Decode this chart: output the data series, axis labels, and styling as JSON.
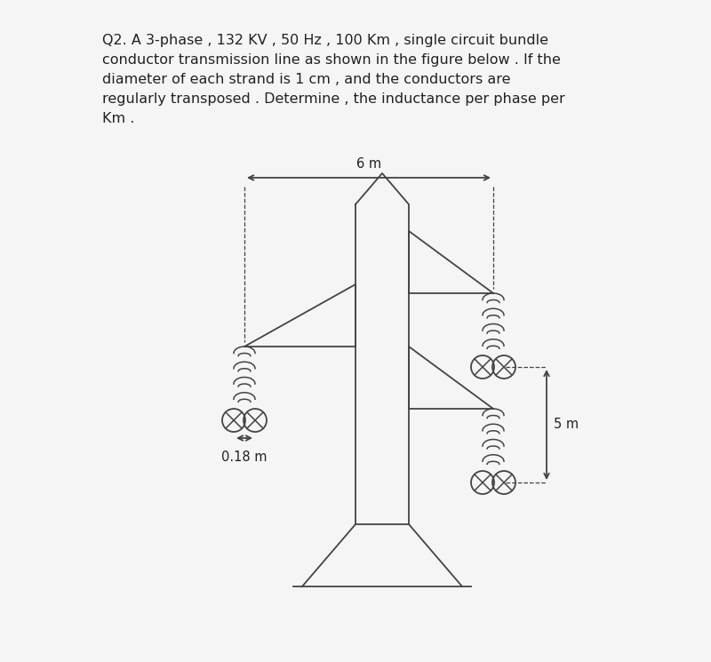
{
  "title_line1": "Q2. A 3-phase , 132 KV , 50 Hz , 100 Km , single circuit bundle",
  "title_line2": "conductor transmission line as shown in the figure below . If the",
  "title_line3": "diameter of each strand is 1 cm , and the conductors are",
  "title_line4": "regularly transposed . Determine , the inductance per phase per",
  "title_line5": "Km .",
  "bg_color": "#f5f5f5",
  "line_color": "#444444",
  "dim_6m": "6 m",
  "dim_5m": "5 m",
  "dim_018m": "0.18 m",
  "text_color": "#222222",
  "title_fontsize": 11.5,
  "label_fontsize": 10.5
}
